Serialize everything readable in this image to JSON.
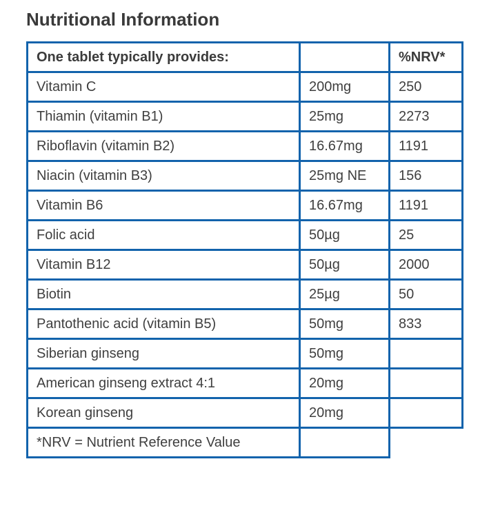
{
  "page_title": "Nutritional Information",
  "colors": {
    "table_border": "#1263ac",
    "body_text": "#3f3f3f",
    "title_text": "#3a3a3a",
    "background": "#ffffff"
  },
  "table": {
    "header": {
      "col1": "One tablet typically provides:",
      "col2": "",
      "col3": "%NRV*"
    },
    "rows": [
      {
        "name": "Vitamin C",
        "amount": "200mg",
        "nrv": "250"
      },
      {
        "name": "Thiamin (vitamin B1)",
        "amount": "25mg",
        "nrv": "2273"
      },
      {
        "name": "Riboflavin (vitamin B2)",
        "amount": "16.67mg",
        "nrv": "1191"
      },
      {
        "name": "Niacin (vitamin B3)",
        "amount": "25mg NE",
        "nrv": "156"
      },
      {
        "name": "Vitamin B6",
        "amount": "16.67mg",
        "nrv": "1191"
      },
      {
        "name": "Folic acid",
        "amount": "50µg",
        "nrv": "25"
      },
      {
        "name": "Vitamin B12",
        "amount": "50µg",
        "nrv": "2000"
      },
      {
        "name": "Biotin",
        "amount": "25µg",
        "nrv": "50"
      },
      {
        "name": "Pantothenic acid (vitamin B5)",
        "amount": "50mg",
        "nrv": "833"
      },
      {
        "name": "Siberian ginseng",
        "amount": "50mg",
        "nrv": ""
      },
      {
        "name": "American ginseng extract 4:1",
        "amount": "20mg",
        "nrv": ""
      },
      {
        "name": "Korean ginseng",
        "amount": "20mg",
        "nrv": ""
      }
    ],
    "footnote": {
      "text": "*NRV = Nutrient Reference Value",
      "col2": ""
    }
  }
}
